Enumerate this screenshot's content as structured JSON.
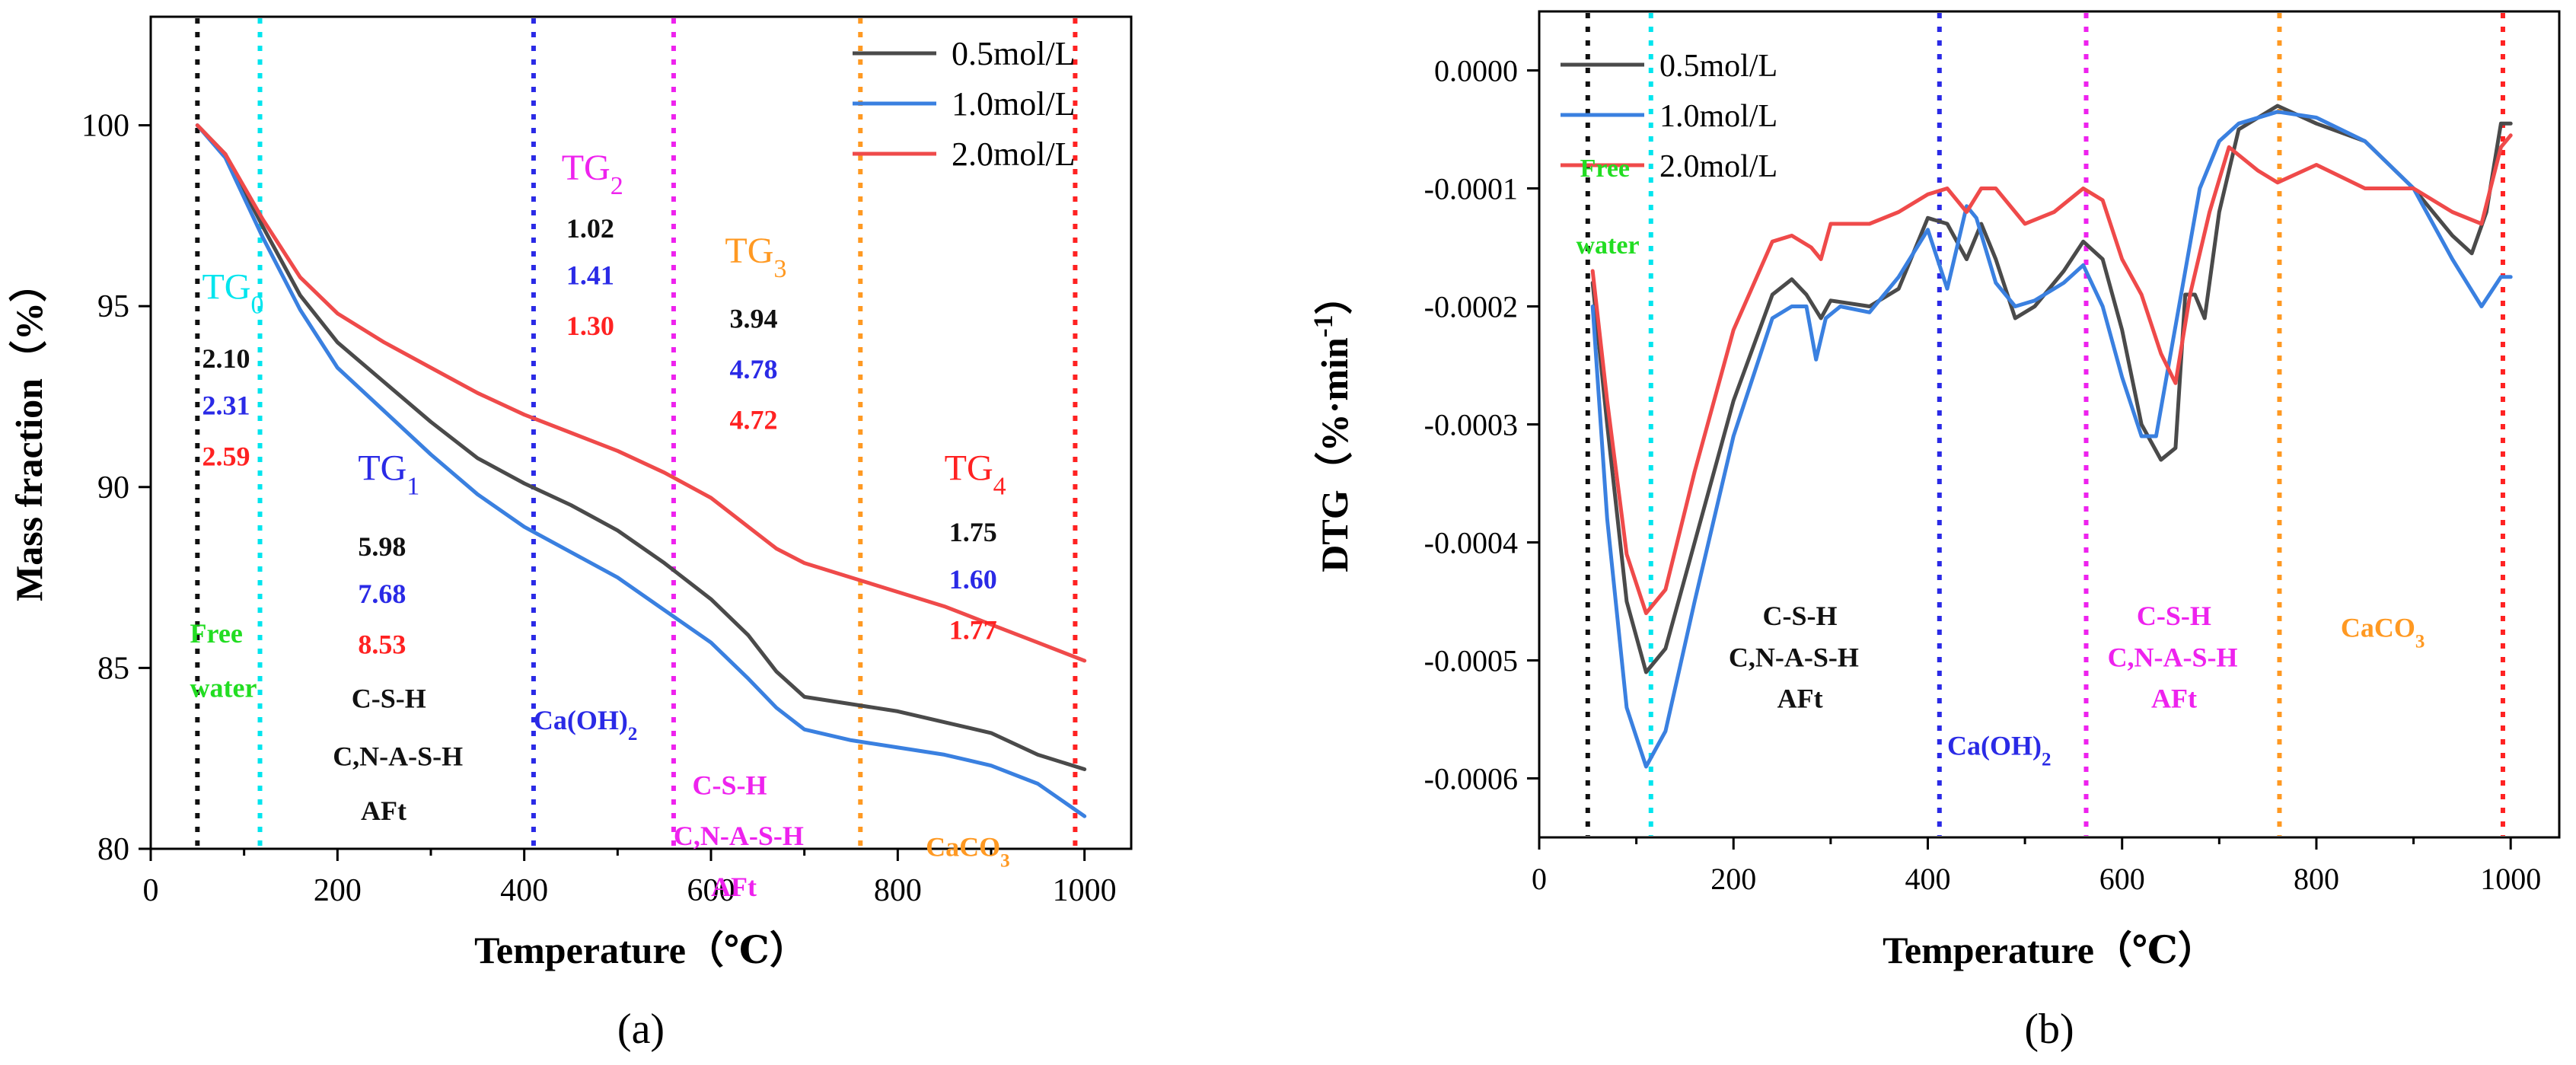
{
  "colors": {
    "series_05": "#4a4a4a",
    "series_10": "#3a80e0",
    "series_20": "#ef4a4a",
    "cyan": "#00e5ee",
    "green": "#22dd22",
    "blue_label": "#2a2ae6",
    "magenta": "#ee22ee",
    "orange": "#ff9922",
    "red": "#ff2222",
    "black": "#111111"
  },
  "chart_data": [
    {
      "type": "line",
      "panel_label": "(a)",
      "xlabel": "Temperature（℃）",
      "ylabel": "Mass fraction（%）",
      "xlim": [
        0,
        1050
      ],
      "ylim": [
        80,
        103
      ],
      "x_ticks": [
        0,
        200,
        400,
        600,
        800,
        1000
      ],
      "y_ticks": [
        80,
        85,
        90,
        95,
        100
      ],
      "legend": [
        "0.5mol/L",
        "1.0mol/L",
        "2.0mol/L"
      ],
      "series": [
        {
          "name": "0.5mol/L",
          "x": [
            50,
            80,
            120,
            160,
            200,
            250,
            300,
            350,
            400,
            450,
            500,
            550,
            600,
            640,
            670,
            700,
            750,
            800,
            850,
            900,
            950,
            1000
          ],
          "y": [
            100,
            99.2,
            97.2,
            95.3,
            94.0,
            92.9,
            91.8,
            90.8,
            90.1,
            89.5,
            88.8,
            87.9,
            86.9,
            85.9,
            84.9,
            84.2,
            84.0,
            83.8,
            83.5,
            83.2,
            82.6,
            82.2
          ]
        },
        {
          "name": "1.0mol/L",
          "x": [
            50,
            80,
            120,
            160,
            200,
            250,
            300,
            350,
            400,
            450,
            500,
            550,
            600,
            640,
            670,
            700,
            750,
            800,
            850,
            900,
            950,
            1000
          ],
          "y": [
            100,
            99.1,
            96.9,
            94.9,
            93.3,
            92.1,
            90.9,
            89.8,
            88.9,
            88.2,
            87.5,
            86.6,
            85.7,
            84.7,
            83.9,
            83.3,
            83.0,
            82.8,
            82.6,
            82.3,
            81.8,
            80.9
          ]
        },
        {
          "name": "2.0mol/L",
          "x": [
            50,
            80,
            120,
            160,
            200,
            250,
            300,
            350,
            400,
            450,
            500,
            550,
            600,
            640,
            670,
            700,
            750,
            800,
            850,
            900,
            950,
            1000
          ],
          "y": [
            100,
            99.2,
            97.4,
            95.8,
            94.8,
            94.0,
            93.3,
            92.6,
            92.0,
            91.5,
            91.0,
            90.4,
            89.7,
            88.9,
            88.3,
            87.9,
            87.5,
            87.1,
            86.7,
            86.2,
            85.7,
            85.2
          ]
        }
      ],
      "vlines": [
        {
          "x": 50,
          "color": "#111111"
        },
        {
          "x": 117,
          "color": "#00e5ee"
        },
        {
          "x": 410,
          "color": "#2a2ae6"
        },
        {
          "x": 560,
          "color": "#ee22ee"
        },
        {
          "x": 760,
          "color": "#ff9922"
        },
        {
          "x": 990,
          "color": "#ff2222"
        }
      ],
      "annotations": [
        {
          "text": "TG",
          "sub": "0",
          "x": 55,
          "y": 95.2,
          "color": "#00e5ee",
          "size": 48,
          "bold": false
        },
        {
          "text": "2.10",
          "x": 55,
          "y": 93.3,
          "color": "#111111",
          "size": 36,
          "bold": true
        },
        {
          "text": "2.31",
          "x": 55,
          "y": 92.0,
          "color": "#2a2ae6",
          "size": 36,
          "bold": true
        },
        {
          "text": "2.59",
          "x": 55,
          "y": 90.6,
          "color": "#ff2222",
          "size": 36,
          "bold": true
        },
        {
          "text": "TG",
          "sub": "1",
          "x": 222,
          "y": 90.2,
          "color": "#2a2ae6",
          "size": 48,
          "bold": false
        },
        {
          "text": "5.98",
          "x": 222,
          "y": 88.1,
          "color": "#111111",
          "size": 36,
          "bold": true
        },
        {
          "text": "7.68",
          "x": 222,
          "y": 86.8,
          "color": "#2a2ae6",
          "size": 36,
          "bold": true
        },
        {
          "text": "8.53",
          "x": 222,
          "y": 85.4,
          "color": "#ff2222",
          "size": 36,
          "bold": true
        },
        {
          "text": "Free",
          "x": 42,
          "y": 85.7,
          "color": "#22dd22",
          "size": 36,
          "bold": true
        },
        {
          "text": "water",
          "x": 42,
          "y": 84.2,
          "color": "#22dd22",
          "size": 36,
          "bold": true
        },
        {
          "text": "C-S-H",
          "x": 215,
          "y": 83.9,
          "color": "#111111",
          "size": 36,
          "bold": true
        },
        {
          "text": "C,N-A-S-H",
          "x": 195,
          "y": 82.3,
          "color": "#111111",
          "size": 36,
          "bold": true
        },
        {
          "text": "AFt",
          "x": 225,
          "y": 80.8,
          "color": "#111111",
          "size": 36,
          "bold": true
        },
        {
          "text": "TG",
          "sub": "2",
          "x": 440,
          "y": 98.5,
          "color": "#ee22ee",
          "size": 48,
          "bold": false
        },
        {
          "text": "1.02",
          "x": 445,
          "y": 96.9,
          "color": "#111111",
          "size": 36,
          "bold": true
        },
        {
          "text": "1.41",
          "x": 445,
          "y": 95.6,
          "color": "#2a2ae6",
          "size": 36,
          "bold": true
        },
        {
          "text": "1.30",
          "x": 445,
          "y": 94.2,
          "color": "#ff2222",
          "size": 36,
          "bold": true
        },
        {
          "text": "TG",
          "sub": "3",
          "x": 615,
          "y": 96.2,
          "color": "#ff9922",
          "size": 48,
          "bold": false
        },
        {
          "text": "3.94",
          "x": 620,
          "y": 94.4,
          "color": "#111111",
          "size": 36,
          "bold": true
        },
        {
          "text": "4.78",
          "x": 620,
          "y": 93.0,
          "color": "#2a2ae6",
          "size": 36,
          "bold": true
        },
        {
          "text": "4.72",
          "x": 620,
          "y": 91.6,
          "color": "#ff2222",
          "size": 36,
          "bold": true
        },
        {
          "text": "TG",
          "sub": "4",
          "x": 850,
          "y": 90.2,
          "color": "#ff2222",
          "size": 48,
          "bold": false
        },
        {
          "text": "1.75",
          "x": 855,
          "y": 88.5,
          "color": "#111111",
          "size": 36,
          "bold": true
        },
        {
          "text": "1.60",
          "x": 855,
          "y": 87.2,
          "color": "#2a2ae6",
          "size": 36,
          "bold": true
        },
        {
          "text": "1.77",
          "x": 855,
          "y": 85.8,
          "color": "#ff2222",
          "size": 36,
          "bold": true
        },
        {
          "text": "Ca(OH)",
          "sub": "2",
          "x": 410,
          "y": 83.3,
          "color": "#2a2ae6",
          "size": 36,
          "bold": true
        },
        {
          "text": "C-S-H",
          "x": 580,
          "y": 81.5,
          "color": "#ee22ee",
          "size": 36,
          "bold": true
        },
        {
          "text": "C,N-A-S-H",
          "x": 560,
          "y": 80.1,
          "color": "#ee22ee",
          "size": 36,
          "bold": true
        },
        {
          "text": "AFt",
          "x": 600,
          "y": 78.7,
          "color": "#ee22ee",
          "size": 36,
          "bold": true
        },
        {
          "text": "CaCO",
          "sub": "3",
          "x": 830,
          "y": 79.8,
          "color": "#ff9922",
          "size": 36,
          "bold": true
        }
      ]
    },
    {
      "type": "line",
      "panel_label": "(b)",
      "xlabel": "Temperature（℃）",
      "ylabel": "DTG（%·min",
      "ylabel_sup": "-1",
      "ylabel_end": "）",
      "xlim": [
        0,
        1050
      ],
      "ylim": [
        -0.00065,
        5e-05
      ],
      "x_ticks": [
        0,
        200,
        400,
        600,
        800,
        1000
      ],
      "y_ticks": [
        -0.0006,
        -0.0005,
        -0.0004,
        -0.0003,
        -0.0002,
        -0.0001,
        0.0
      ],
      "y_tick_labels": [
        "-0.0006",
        "-0.0005",
        "-0.0004",
        "-0.0003",
        "-0.0002",
        "-0.0001",
        "0.0000"
      ],
      "legend": [
        "0.5mol/L",
        "1.0mol/L",
        "2.0mol/L"
      ],
      "series": [
        {
          "name": "0.5mol/L",
          "x": [
            55,
            70,
            90,
            110,
            130,
            160,
            200,
            240,
            260,
            275,
            290,
            300,
            340,
            370,
            400,
            420,
            440,
            455,
            470,
            490,
            510,
            540,
            560,
            580,
            600,
            620,
            640,
            655,
            665,
            675,
            685,
            700,
            720,
            760,
            800,
            850,
            900,
            940,
            960,
            975,
            990,
            1000
          ],
          "y": [
            -0.00018,
            -0.0003,
            -0.00045,
            -0.00051,
            -0.00049,
            -0.0004,
            -0.00028,
            -0.00019,
            -0.000177,
            -0.00019,
            -0.00021,
            -0.000195,
            -0.0002,
            -0.000185,
            -0.000125,
            -0.00013,
            -0.00016,
            -0.00013,
            -0.00016,
            -0.00021,
            -0.0002,
            -0.00017,
            -0.000145,
            -0.00016,
            -0.00022,
            -0.0003,
            -0.00033,
            -0.00032,
            -0.00019,
            -0.00019,
            -0.00021,
            -0.00012,
            -5e-05,
            -3e-05,
            -4.5e-05,
            -6e-05,
            -0.0001,
            -0.00014,
            -0.000155,
            -0.00012,
            -4.5e-05,
            -4.5e-05
          ]
        },
        {
          "name": "1.0mol/L",
          "x": [
            55,
            70,
            90,
            110,
            130,
            160,
            200,
            240,
            260,
            275,
            285,
            295,
            310,
            340,
            370,
            400,
            420,
            440,
            450,
            470,
            490,
            510,
            540,
            560,
            580,
            600,
            620,
            635,
            650,
            665,
            680,
            700,
            720,
            760,
            800,
            850,
            900,
            940,
            970,
            990,
            1000
          ],
          "y": [
            -0.0002,
            -0.00038,
            -0.00054,
            -0.00059,
            -0.00056,
            -0.00045,
            -0.00031,
            -0.00021,
            -0.0002,
            -0.0002,
            -0.000245,
            -0.00021,
            -0.0002,
            -0.000205,
            -0.000175,
            -0.000135,
            -0.000185,
            -0.000115,
            -0.000125,
            -0.00018,
            -0.0002,
            -0.000195,
            -0.00018,
            -0.000165,
            -0.0002,
            -0.00026,
            -0.00031,
            -0.00031,
            -0.00024,
            -0.00017,
            -0.0001,
            -6e-05,
            -4.5e-05,
            -3.5e-05,
            -4e-05,
            -6e-05,
            -0.0001,
            -0.00016,
            -0.0002,
            -0.000175,
            -0.000175
          ]
        },
        {
          "name": "2.0mol/L",
          "x": [
            55,
            70,
            90,
            110,
            130,
            160,
            200,
            240,
            260,
            280,
            290,
            300,
            340,
            370,
            400,
            420,
            440,
            455,
            470,
            500,
            530,
            560,
            580,
            600,
            620,
            640,
            655,
            670,
            690,
            710,
            740,
            760,
            800,
            850,
            900,
            940,
            970,
            990,
            1000
          ],
          "y": [
            -0.00017,
            -0.00028,
            -0.00041,
            -0.00046,
            -0.00044,
            -0.00034,
            -0.00022,
            -0.000145,
            -0.00014,
            -0.00015,
            -0.00016,
            -0.00013,
            -0.00013,
            -0.00012,
            -0.000105,
            -0.0001,
            -0.00012,
            -0.0001,
            -0.0001,
            -0.00013,
            -0.00012,
            -0.0001,
            -0.00011,
            -0.00016,
            -0.00019,
            -0.00024,
            -0.000265,
            -0.00019,
            -0.00012,
            -6.5e-05,
            -8.5e-05,
            -9.5e-05,
            -8e-05,
            -0.0001,
            -0.0001,
            -0.00012,
            -0.00013,
            -6.5e-05,
            -5.5e-05
          ]
        }
      ],
      "vlines": [
        {
          "x": 50,
          "color": "#111111"
        },
        {
          "x": 115,
          "color": "#00e5ee"
        },
        {
          "x": 412,
          "color": "#2a2ae6"
        },
        {
          "x": 563,
          "color": "#ee22ee"
        },
        {
          "x": 762,
          "color": "#ff9922"
        },
        {
          "x": 992,
          "color": "#ff2222"
        }
      ],
      "annotations": [
        {
          "text": "Free",
          "x": 42,
          "y": -9e-05,
          "color": "#22dd22",
          "size": 34,
          "bold": true
        },
        {
          "text": "water",
          "x": 38,
          "y": -0.000155,
          "color": "#22dd22",
          "size": 34,
          "bold": true
        },
        {
          "text": "C-S-H",
          "x": 230,
          "y": -0.00047,
          "color": "#111111",
          "size": 36,
          "bold": true
        },
        {
          "text": "C,N-A-S-H",
          "x": 195,
          "y": -0.000505,
          "color": "#111111",
          "size": 36,
          "bold": true
        },
        {
          "text": "AFt",
          "x": 245,
          "y": -0.00054,
          "color": "#111111",
          "size": 36,
          "bold": true
        },
        {
          "text": "Ca(OH)",
          "sub": "2",
          "x": 420,
          "y": -0.00058,
          "color": "#2a2ae6",
          "size": 36,
          "bold": true
        },
        {
          "text": "C-S-H",
          "x": 615,
          "y": -0.00047,
          "color": "#ee22ee",
          "size": 36,
          "bold": true
        },
        {
          "text": "C,N-A-S-H",
          "x": 585,
          "y": -0.000505,
          "color": "#ee22ee",
          "size": 36,
          "bold": true
        },
        {
          "text": "AFt",
          "x": 630,
          "y": -0.00054,
          "color": "#ee22ee",
          "size": 36,
          "bold": true
        },
        {
          "text": "CaCO",
          "sub": "3",
          "x": 825,
          "y": -0.00048,
          "color": "#ff9922",
          "size": 36,
          "bold": true
        }
      ]
    }
  ]
}
